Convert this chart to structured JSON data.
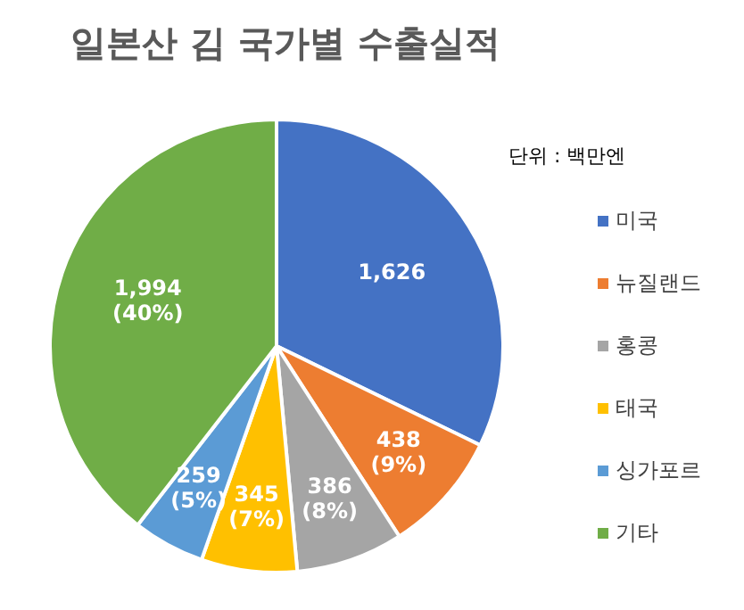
{
  "chart_data": {
    "type": "pie",
    "title": "일본산 김 국가별 수출실적",
    "annotations": [
      "단위 : 백만엔"
    ],
    "categories": [
      "미국",
      "뉴질랜드",
      "홍콩",
      "태국",
      "싱가포르",
      "기타"
    ],
    "values": [
      1626,
      438,
      386,
      345,
      259,
      1994
    ],
    "colors": [
      "#4472c4",
      "#ed7d31",
      "#a5a5a5",
      "#ffc000",
      "#5b9bd5",
      "#70ad47"
    ],
    "value_labels": [
      "1,626",
      "438\n(9%)",
      "386\n(8%)",
      "345\n(7%)",
      "259\n(5%)",
      "1,994\n(40%)"
    ],
    "legend": "right"
  }
}
